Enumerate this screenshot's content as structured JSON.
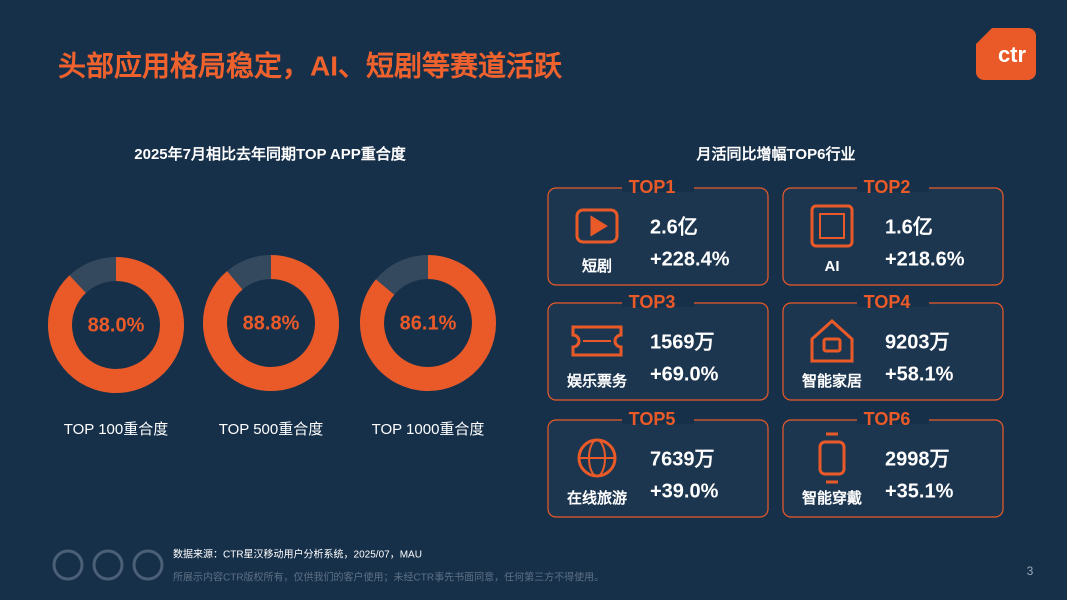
{
  "title": "头部应用格局稳定，AI、短剧等赛道活跃",
  "logo": "ctr",
  "page_number": "3",
  "overlap_title": "2025年7月相比去年同期TOP APP重合度",
  "chart_data": [
    {
      "type": "donut",
      "title": "TOP 100重合度",
      "values": [
        88.0
      ],
      "value_labels": [
        "88.0%"
      ],
      "color": "#ea5a28",
      "track_color": "#34495d"
    },
    {
      "type": "donut",
      "title": "TOP 500重合度",
      "values": [
        88.8
      ],
      "value_labels": [
        "88.8%"
      ],
      "color": "#ea5a28",
      "track_color": "#34495d"
    },
    {
      "type": "donut",
      "title": "TOP 1000重合度",
      "values": [
        86.1
      ],
      "value_labels": [
        "86.1%"
      ],
      "color": "#ea5a28",
      "track_color": "#34495d"
    }
  ],
  "industry_panel": {
    "title": "月活同比增幅TOP6行业",
    "cards": [
      {
        "rank": "TOP1",
        "name": "短剧",
        "users": "2.6亿",
        "growth": "+228.4%"
      },
      {
        "rank": "TOP2",
        "name": "AI",
        "users": "1.6亿",
        "growth": "+218.6%"
      },
      {
        "rank": "TOP3",
        "name": "娱乐票务",
        "users": "1569万",
        "growth": "+69.0%"
      },
      {
        "rank": "TOP4",
        "name": "智能家居",
        "users": "9203万",
        "growth": "+58.1%"
      },
      {
        "rank": "TOP5",
        "name": "在线旅游",
        "users": "7639万",
        "growth": "+39.0%"
      },
      {
        "rank": "TOP6",
        "name": "智能穿戴",
        "users": "2998万",
        "growth": "+35.1%"
      }
    ]
  },
  "footer": {
    "source": "数据来源：CTR星汉移动用户分析系统，2025/07，MAU",
    "disclaimer": "所展示内容CTR版权所有，仅供我们的客户使用；未经CTR事先书面同意，任何第三方不得使用。"
  }
}
